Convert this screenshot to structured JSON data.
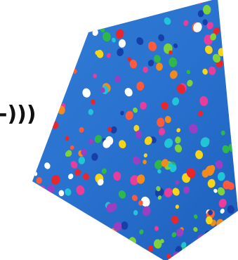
{
  "caption": "-)))"
}
